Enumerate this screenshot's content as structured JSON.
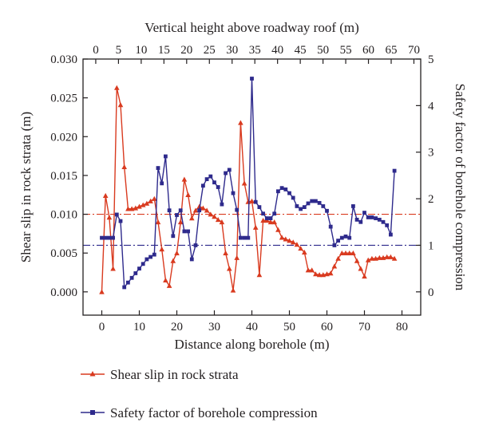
{
  "chart_data": {
    "type": "line",
    "x_axis": {
      "label": "Distance along borehole (m)",
      "range": [
        -5,
        85
      ],
      "ticks": [
        0,
        10,
        20,
        30,
        40,
        50,
        60,
        70,
        80
      ]
    },
    "x2_axis": {
      "label": "Vertical height above roadway roof (m)",
      "range": [
        -2.8,
        71.5
      ],
      "ticks": [
        0,
        5,
        10,
        15,
        20,
        25,
        30,
        35,
        40,
        45,
        50,
        55,
        60,
        65,
        70
      ]
    },
    "y_axis": {
      "label": "Shear slip in rock strata (m)",
      "range": [
        -0.003,
        0.03
      ],
      "ticks": [
        "0.000",
        "0.005",
        "0.010",
        "0.015",
        "0.020",
        "0.025",
        "0.030"
      ]
    },
    "y2_axis": {
      "label": "Safety factor of borehole compression",
      "range": [
        -0.5,
        5
      ],
      "ticks": [
        0,
        1,
        2,
        3,
        4,
        5
      ]
    },
    "reference_lines": [
      {
        "axis": "y",
        "value": 0.01,
        "color": "#d93a1f",
        "style": "dash-dot"
      },
      {
        "axis": "y2",
        "value": 1.0,
        "color": "#2e2a8c",
        "style": "dash-dot"
      }
    ],
    "legend_position": "bottom-left",
    "grid": false,
    "series": [
      {
        "name": "Shear slip in rock strata",
        "axis": "y",
        "color": "#d93a1f",
        "marker": "triangle",
        "points": [
          [
            0,
            0.0
          ],
          [
            1,
            0.0124
          ],
          [
            2,
            0.0096
          ],
          [
            3,
            0.003
          ],
          [
            4,
            0.0263
          ],
          [
            5,
            0.0241
          ],
          [
            6,
            0.0161
          ],
          [
            7,
            0.0107
          ],
          [
            8,
            0.0107
          ],
          [
            9,
            0.0108
          ],
          [
            10,
            0.011
          ],
          [
            11,
            0.0112
          ],
          [
            12,
            0.0114
          ],
          [
            13,
            0.0117
          ],
          [
            14,
            0.012
          ],
          [
            15,
            0.009
          ],
          [
            16,
            0.0055
          ],
          [
            17,
            0.0015
          ],
          [
            18,
            0.0008
          ],
          [
            19,
            0.004
          ],
          [
            20,
            0.005
          ],
          [
            21,
            0.009
          ],
          [
            22,
            0.0145
          ],
          [
            23,
            0.0125
          ],
          [
            24,
            0.0095
          ],
          [
            25,
            0.0105
          ],
          [
            26,
            0.011
          ],
          [
            27,
            0.0108
          ],
          [
            28,
            0.0105
          ],
          [
            29,
            0.01
          ],
          [
            30,
            0.0097
          ],
          [
            31,
            0.0093
          ],
          [
            32,
            0.009
          ],
          [
            33,
            0.005
          ],
          [
            34,
            0.003
          ],
          [
            35,
            0.0002
          ],
          [
            36,
            0.0044
          ],
          [
            37,
            0.0218
          ],
          [
            38,
            0.014
          ],
          [
            39,
            0.0116
          ],
          [
            40,
            0.0117
          ],
          [
            41,
            0.0083
          ],
          [
            42,
            0.0022
          ],
          [
            43,
            0.0092
          ],
          [
            44,
            0.0092
          ],
          [
            45,
            0.009
          ],
          [
            46,
            0.009
          ],
          [
            47,
            0.008
          ],
          [
            48,
            0.007
          ],
          [
            49,
            0.0068
          ],
          [
            50,
            0.0066
          ],
          [
            51,
            0.0064
          ],
          [
            52,
            0.0061
          ],
          [
            53,
            0.0056
          ],
          [
            54,
            0.0051
          ],
          [
            55,
            0.0028
          ],
          [
            56,
            0.0028
          ],
          [
            57,
            0.0023
          ],
          [
            58,
            0.0022
          ],
          [
            59,
            0.0022
          ],
          [
            60,
            0.0023
          ],
          [
            61,
            0.0024
          ],
          [
            62,
            0.0033
          ],
          [
            63,
            0.0043
          ],
          [
            64,
            0.005
          ],
          [
            65,
            0.005
          ],
          [
            66,
            0.005
          ],
          [
            67,
            0.005
          ],
          [
            68,
            0.004
          ],
          [
            69,
            0.003
          ],
          [
            70,
            0.002
          ],
          [
            71,
            0.0041
          ],
          [
            72,
            0.0043
          ],
          [
            73,
            0.0043
          ],
          [
            74,
            0.0044
          ],
          [
            75,
            0.0044
          ],
          [
            76,
            0.0045
          ],
          [
            77,
            0.0045
          ],
          [
            78,
            0.0043
          ]
        ]
      },
      {
        "name": "Safety factor of borehole compression",
        "axis": "y2",
        "color": "#2e2a8c",
        "marker": "square",
        "points": [
          [
            0,
            1.16
          ],
          [
            1,
            1.16
          ],
          [
            2,
            1.16
          ],
          [
            3,
            1.16
          ],
          [
            4,
            1.66
          ],
          [
            5,
            1.52
          ],
          [
            6,
            0.1
          ],
          [
            7,
            0.2
          ],
          [
            8,
            0.3
          ],
          [
            9,
            0.4
          ],
          [
            10,
            0.5
          ],
          [
            11,
            0.6
          ],
          [
            12,
            0.7
          ],
          [
            13,
            0.75
          ],
          [
            14,
            0.8
          ],
          [
            15,
            2.66
          ],
          [
            16,
            2.33
          ],
          [
            17,
            2.91
          ],
          [
            18,
            1.75
          ],
          [
            19,
            1.2
          ],
          [
            20,
            1.65
          ],
          [
            21,
            1.75
          ],
          [
            22,
            1.3
          ],
          [
            23,
            1.3
          ],
          [
            24,
            0.7
          ],
          [
            25,
            1.0
          ],
          [
            26,
            1.75
          ],
          [
            27,
            2.28
          ],
          [
            28,
            2.42
          ],
          [
            29,
            2.48
          ],
          [
            30,
            2.35
          ],
          [
            31,
            2.25
          ],
          [
            32,
            1.88
          ],
          [
            33,
            2.55
          ],
          [
            34,
            2.62
          ],
          [
            35,
            2.12
          ],
          [
            36,
            1.76
          ],
          [
            37,
            1.16
          ],
          [
            38,
            1.16
          ],
          [
            39,
            1.16
          ],
          [
            40,
            4.58
          ],
          [
            41,
            1.93
          ],
          [
            42,
            1.82
          ],
          [
            43,
            1.68
          ],
          [
            44,
            1.58
          ],
          [
            45,
            1.58
          ],
          [
            46,
            1.68
          ],
          [
            47,
            2.16
          ],
          [
            48,
            2.23
          ],
          [
            49,
            2.2
          ],
          [
            50,
            2.12
          ],
          [
            51,
            2.02
          ],
          [
            52,
            1.84
          ],
          [
            53,
            1.78
          ],
          [
            54,
            1.82
          ],
          [
            55,
            1.9
          ],
          [
            56,
            1.95
          ],
          [
            57,
            1.95
          ],
          [
            58,
            1.91
          ],
          [
            59,
            1.84
          ],
          [
            60,
            1.74
          ],
          [
            61,
            1.4
          ],
          [
            62,
            1.0
          ],
          [
            63,
            1.1
          ],
          [
            64,
            1.16
          ],
          [
            65,
            1.19
          ],
          [
            66,
            1.16
          ],
          [
            67,
            1.84
          ],
          [
            68,
            1.55
          ],
          [
            69,
            1.5
          ],
          [
            70,
            1.7
          ],
          [
            71,
            1.6
          ],
          [
            72,
            1.6
          ],
          [
            73,
            1.58
          ],
          [
            74,
            1.55
          ],
          [
            75,
            1.5
          ],
          [
            76,
            1.43
          ],
          [
            77,
            1.23
          ],
          [
            78,
            2.6
          ]
        ]
      }
    ]
  }
}
